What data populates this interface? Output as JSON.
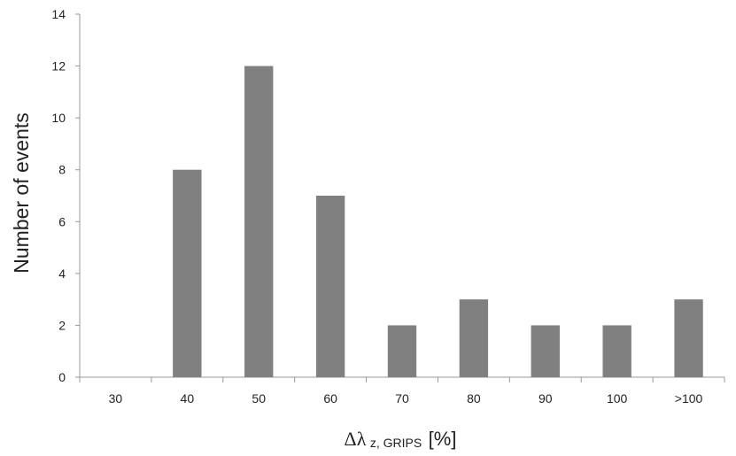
{
  "chart_data": {
    "type": "bar",
    "categories": [
      "30",
      "40",
      "50",
      "60",
      "70",
      "80",
      "90",
      "100",
      ">100"
    ],
    "values": [
      0,
      8,
      12,
      7,
      2,
      3,
      2,
      2,
      3
    ],
    "ylabel": "Number of events",
    "xlabel": {
      "main": "Δλ",
      "subscript": "z, GRIPS",
      "unit": "[%]"
    },
    "ylim": [
      0,
      14
    ],
    "yticks": [
      "0",
      "2",
      "4",
      "6",
      "8",
      "10",
      "12",
      "14"
    ],
    "grid": false,
    "legend": "none",
    "bar_color": "#808080",
    "axis_color": "#999999"
  }
}
